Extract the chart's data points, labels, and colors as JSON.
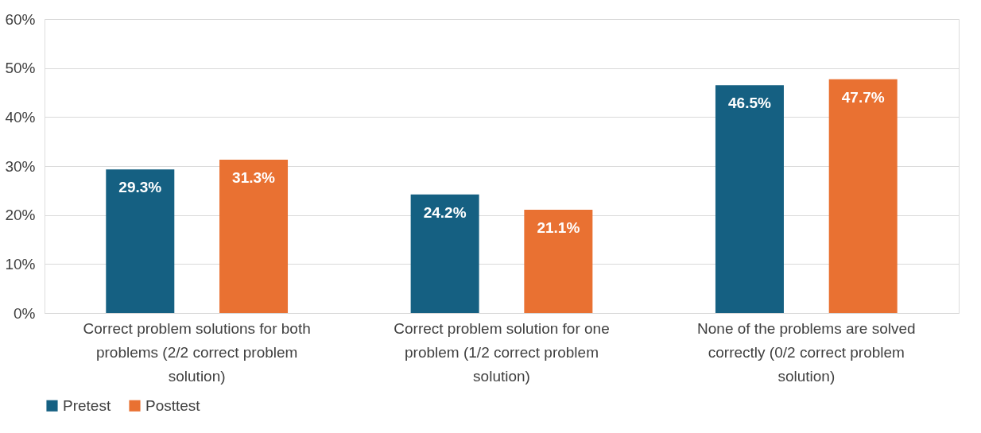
{
  "chart_data": {
    "type": "bar",
    "categories": [
      "Correct problem solutions for both problems (2/2 correct problem solution)",
      "Correct problem solution for one problem (1/2 correct problem solution)",
      "None of the problems are solved correctly (0/2 correct problem solution)"
    ],
    "series": [
      {
        "name": "Pretest",
        "color": "#156082",
        "values": [
          29.3,
          24.2,
          46.5
        ]
      },
      {
        "name": "Posttest",
        "color": "#e97132",
        "values": [
          31.3,
          21.1,
          47.7
        ]
      }
    ],
    "value_labels": [
      "29.3%",
      "24.2%",
      "46.5%",
      "31.3%",
      "21.1%",
      "47.7%"
    ],
    "ylim": [
      0,
      60
    ],
    "yticks": [
      {
        "value": 0,
        "label": "0%"
      },
      {
        "value": 10,
        "label": "10%"
      },
      {
        "value": 20,
        "label": "20%"
      },
      {
        "value": 30,
        "label": "30%"
      },
      {
        "value": 40,
        "label": "40%"
      },
      {
        "value": 50,
        "label": "50%"
      },
      {
        "value": 60,
        "label": "60%"
      }
    ],
    "grid": "y",
    "legend": "bottom"
  }
}
